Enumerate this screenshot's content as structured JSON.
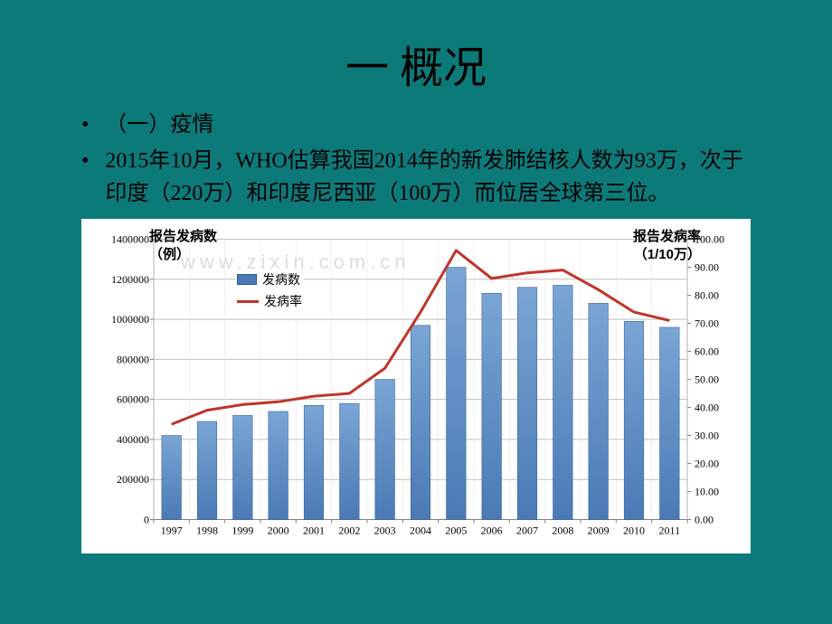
{
  "title": "一 概况",
  "bullets": {
    "b1": "（一）疫情",
    "b2": "2015年10月，WHO估算我国2014年的新发肺结核人数为93万，次于印度（220万）和印度尼西亚（100万）而位居全球第三位。"
  },
  "watermark": "www.zixin.com.cn",
  "chart": {
    "type": "combo-bar-line",
    "left_axis_title_l1": "报告发病数",
    "left_axis_title_l2": "（例）",
    "right_axis_title_l1": "报告发病率",
    "right_axis_title_l2": "（1/10万）",
    "legend_bar": "发病数",
    "legend_line": "发病率",
    "categories": [
      "1997",
      "1998",
      "1999",
      "2000",
      "2001",
      "2002",
      "2003",
      "2004",
      "2005",
      "2006",
      "2007",
      "2008",
      "2009",
      "2010",
      "2011"
    ],
    "bar_values": [
      420000,
      490000,
      520000,
      540000,
      570000,
      580000,
      700000,
      970000,
      1260000,
      1130000,
      1160000,
      1170000,
      1080000,
      990000,
      960000
    ],
    "line_values": [
      34,
      39,
      41,
      42,
      44,
      45,
      54,
      74,
      96,
      86,
      88,
      89,
      82,
      74,
      71
    ],
    "left_ylim": [
      0,
      1400000
    ],
    "left_ytick_step": 200000,
    "left_ticks": [
      "0",
      "200000",
      "400000",
      "600000",
      "800000",
      "1000000",
      "1200000",
      "1400000"
    ],
    "right_ylim": [
      0,
      100
    ],
    "right_ytick_step": 10,
    "right_ticks": [
      "0.00",
      "10.00",
      "20.00",
      "30.00",
      "40.00",
      "50.00",
      "60.00",
      "70.00",
      "80.00",
      "90.00",
      "100.00"
    ],
    "bar_color": "#5b8bc5",
    "bar_border": "#2a5a95",
    "bar_gradient_top": "#7aa5d5",
    "bar_gradient_bot": "#4a7ab5",
    "line_color": "#c0342a",
    "line_width": 3,
    "grid_color": "#bfbfbf",
    "axis_color": "#808080",
    "background": "#ffffff",
    "label_fontsize": 13,
    "tick_fontsize": 12,
    "bar_width_ratio": 0.55
  }
}
